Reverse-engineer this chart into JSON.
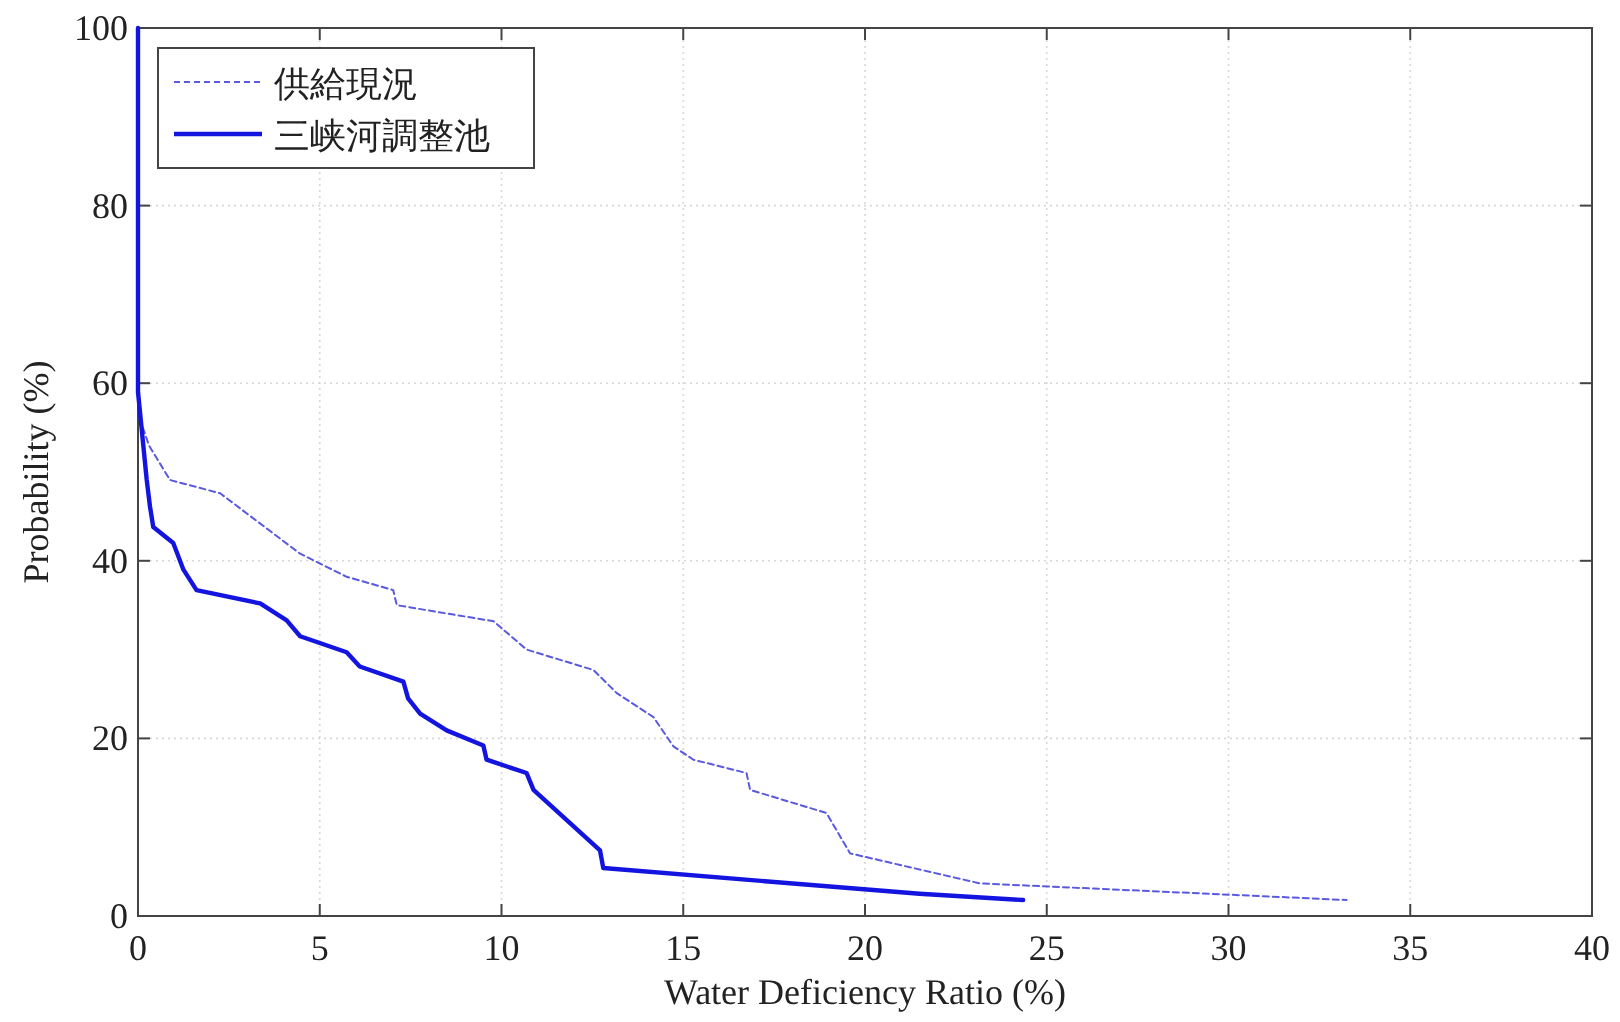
{
  "chart_data": {
    "type": "line",
    "xlabel": "Water Deficiency Ratio (%)",
    "ylabel": "Probability (%)",
    "xlim": [
      0,
      40
    ],
    "ylim": [
      0,
      100
    ],
    "xticks": [
      0,
      5,
      10,
      15,
      20,
      25,
      30,
      35,
      40
    ],
    "yticks": [
      0,
      20,
      40,
      60,
      80,
      100
    ],
    "grid": true,
    "legend": "top left",
    "marker": "none",
    "series": [
      {
        "name": "供給現況",
        "color": "#5a5ae0",
        "line_style": "dashed",
        "x": [
          0,
          0,
          0.05,
          0.3,
          0.88,
          2.26,
          4.46,
          5.74,
          7.02,
          7.12,
          9.78,
          10.69,
          12.53,
          13.17,
          14.18,
          14.73,
          15.28,
          16.74,
          16.84,
          18.94,
          19.59,
          23.16,
          33.25
        ],
        "values": [
          100,
          63,
          56,
          53,
          49.1,
          47.6,
          40.8,
          38.2,
          36.7,
          35,
          33.2,
          30,
          27.7,
          25.1,
          22.4,
          19.1,
          17.6,
          16.1,
          14.2,
          11.6,
          7.05,
          3.67,
          1.8
        ]
      },
      {
        "name": "三峡河調整池",
        "color": "#1414e0",
        "line_style": "solid",
        "x": [
          0,
          0,
          0.24,
          0.33,
          0.42,
          0.97,
          1.25,
          1.61,
          3.36,
          4.09,
          4.46,
          5.74,
          6.1,
          7.3,
          7.43,
          7.76,
          8.49,
          9.5,
          9.59,
          10.69,
          10.88,
          12.71,
          12.8,
          21.5,
          24.35
        ],
        "values": [
          100,
          59,
          49.1,
          46.1,
          43.8,
          42,
          39,
          36.7,
          35.2,
          33.3,
          31.5,
          29.7,
          28.1,
          26.4,
          24.5,
          22.8,
          20.9,
          19.2,
          17.6,
          16.1,
          14.2,
          7.4,
          5.4,
          2.5,
          1.8
        ]
      }
    ]
  }
}
